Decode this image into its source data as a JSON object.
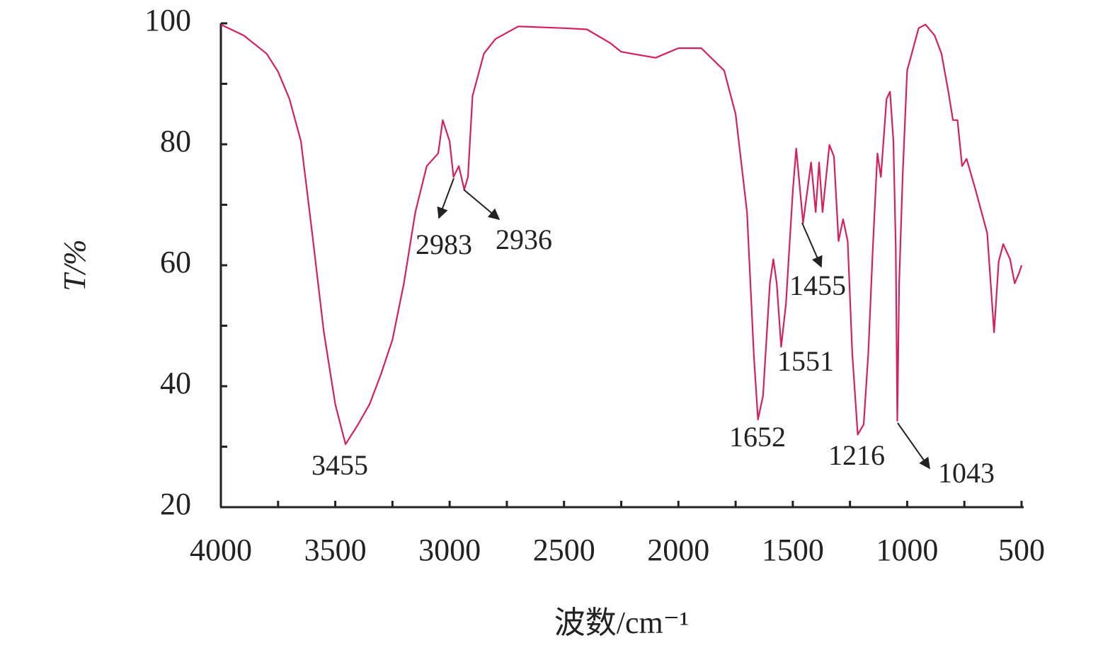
{
  "chart_data": {
    "type": "line",
    "x_label": "波数/cm⁻¹",
    "y_label": "T/%",
    "x": [
      4000,
      3900,
      3800,
      3750,
      3700,
      3650,
      3600,
      3550,
      3500,
      3455,
      3400,
      3350,
      3300,
      3250,
      3200,
      3150,
      3100,
      3050,
      3030,
      3000,
      2983,
      2960,
      2936,
      2920,
      2900,
      2850,
      2800,
      2700,
      2500,
      2400,
      2300,
      2250,
      2100,
      2000,
      1900,
      1800,
      1750,
      1700,
      1670,
      1652,
      1630,
      1600,
      1585,
      1570,
      1551,
      1530,
      1500,
      1485,
      1455,
      1420,
      1400,
      1385,
      1370,
      1340,
      1320,
      1300,
      1280,
      1260,
      1240,
      1216,
      1190,
      1170,
      1150,
      1130,
      1115,
      1090,
      1075,
      1060,
      1050,
      1043,
      1035,
      1020,
      1000,
      950,
      920,
      880,
      850,
      820,
      800,
      780,
      760,
      740,
      700,
      650,
      620,
      600,
      580,
      550,
      530,
      510,
      500
    ],
    "values": [
      99.8,
      98,
      95,
      92,
      87.5,
      80.5,
      65,
      49,
      37,
      30.4,
      33.7,
      37,
      42,
      47.7,
      57,
      68.8,
      76.4,
      78.5,
      84,
      80.5,
      74.6,
      76.4,
      72.5,
      74.6,
      88,
      95,
      97.4,
      99.5,
      99.2,
      99,
      96.8,
      95.3,
      94.3,
      95.9,
      95.9,
      92.2,
      85,
      68.8,
      45,
      34.5,
      38.4,
      57,
      61,
      57,
      46.5,
      53.6,
      72.3,
      79.3,
      67,
      77,
      68.8,
      77,
      68.8,
      79.9,
      78,
      64,
      67.6,
      64,
      45.4,
      32,
      33.7,
      45.4,
      63,
      78.5,
      74.6,
      87.5,
      88.7,
      80.5,
      63,
      34.3,
      57,
      74.6,
      92.2,
      99.2,
      99.8,
      98,
      95,
      88.7,
      84,
      84,
      76.4,
      77.6,
      72.3,
      65.3,
      48.9,
      60.6,
      63.5,
      61,
      57,
      58.8,
      60
    ],
    "color": "#d6205a",
    "xlim": [
      4000,
      500
    ],
    "xticks": [
      4000,
      3500,
      3000,
      2500,
      2000,
      1500,
      1000,
      500
    ],
    "xminorticks": [
      3750,
      3250,
      2750,
      2250,
      1750,
      1250,
      750
    ],
    "ylim": [
      20,
      100
    ],
    "yticks": [
      20,
      40,
      60,
      80,
      100
    ],
    "yminorticks": [
      30,
      50,
      70,
      90
    ],
    "annotations": [
      {
        "text": "3455"
      },
      {
        "text": "2983"
      },
      {
        "text": "2936"
      },
      {
        "text": "1652"
      },
      {
        "text": "1551"
      },
      {
        "text": "1455"
      },
      {
        "text": "1216"
      },
      {
        "text": "1043"
      }
    ]
  }
}
